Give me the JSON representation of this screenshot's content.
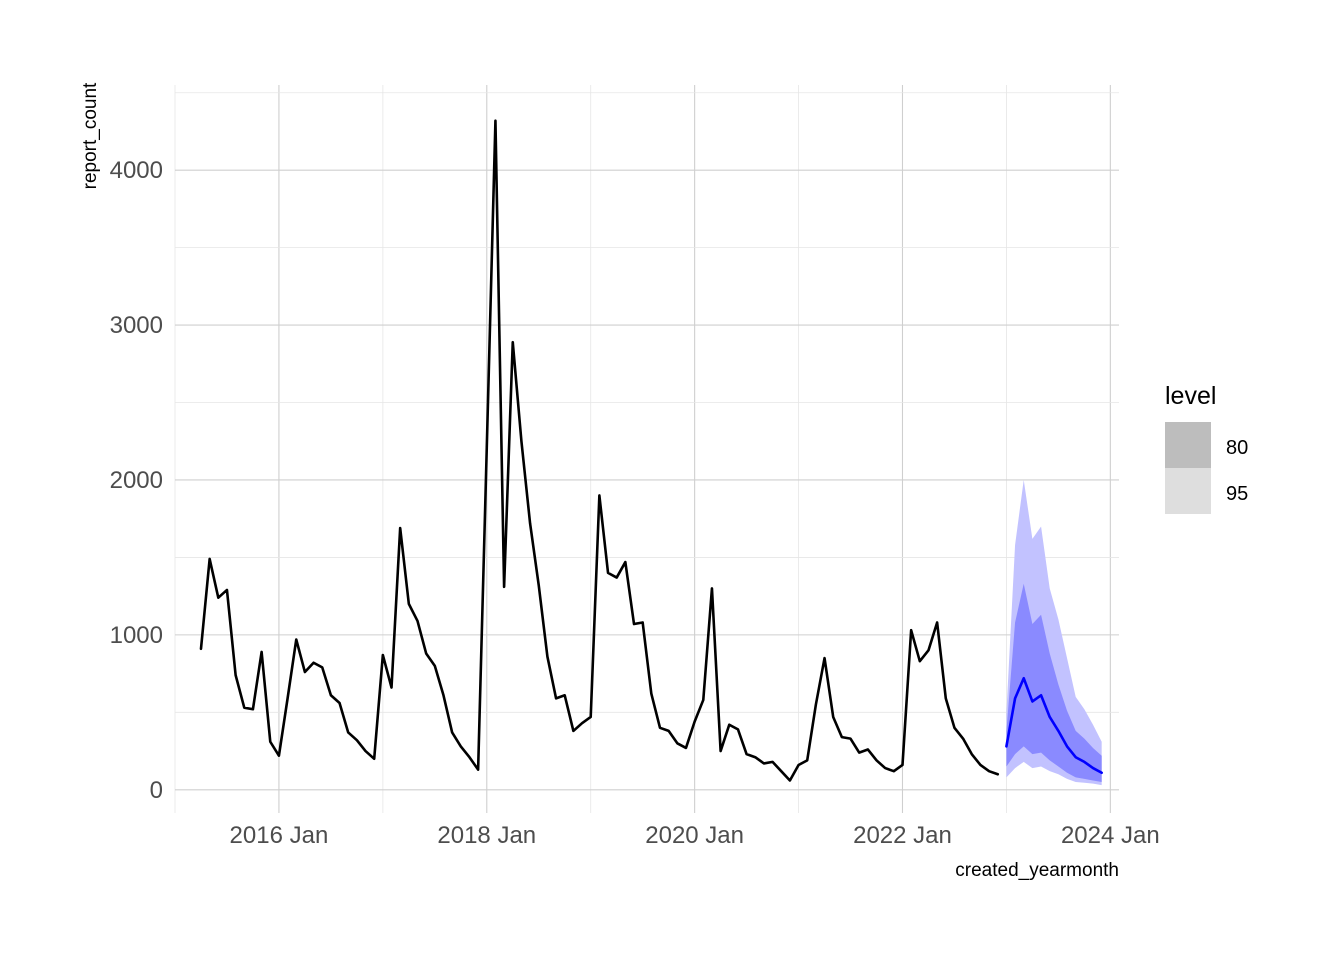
{
  "chart_data": {
    "type": "line",
    "xlabel": "created_yearmonth",
    "ylabel": "report_count",
    "grid": true,
    "legend_position": "right",
    "x_ticks": [
      "2016 Jan",
      "2018 Jan",
      "2020 Jan",
      "2022 Jan",
      "2024 Jan"
    ],
    "y_ticks": [
      0,
      1000,
      2000,
      3000,
      4000
    ],
    "ylim": [
      -150,
      4550
    ],
    "xlim": [
      "2015-01",
      "2024-02"
    ],
    "series": [
      {
        "color": "#000000",
        "x_start": "2015-04",
        "values": [
          910,
          1490,
          1240,
          1290,
          740,
          530,
          520,
          890,
          310,
          220,
          590,
          970,
          760,
          820,
          790,
          610,
          560,
          370,
          320,
          250,
          200,
          870,
          660,
          1690,
          1200,
          1090,
          880,
          800,
          610,
          370,
          280,
          210,
          130,
          2210,
          4320,
          1310,
          2890,
          2250,
          1720,
          1320,
          860,
          590,
          610,
          380,
          430,
          470,
          1900,
          1400,
          1370,
          1470,
          1070,
          1080,
          620,
          400,
          380,
          300,
          270,
          440,
          580,
          1300,
          250,
          420,
          390,
          230,
          210,
          170,
          180,
          120,
          60,
          160,
          190,
          550,
          850,
          470,
          340,
          330,
          240,
          260,
          190,
          140,
          120,
          160,
          1030,
          830,
          900,
          1080,
          590,
          400,
          330,
          230,
          160,
          120,
          100
        ]
      }
    ],
    "forecast": {
      "color": "#0000ff",
      "x_start": "2023-01",
      "mean": [
        280,
        590,
        720,
        570,
        610,
        470,
        380,
        280,
        210,
        180,
        140,
        110
      ],
      "lower_80": [
        150,
        230,
        280,
        230,
        240,
        190,
        150,
        110,
        80,
        70,
        60,
        50
      ],
      "upper_80": [
        380,
        1080,
        1330,
        1070,
        1130,
        880,
        680,
        510,
        380,
        330,
        270,
        220
      ],
      "lower_95": [
        80,
        140,
        180,
        140,
        150,
        120,
        100,
        70,
        50,
        45,
        40,
        30
      ],
      "upper_95": [
        500,
        1580,
        2000,
        1620,
        1700,
        1300,
        1100,
        850,
        600,
        520,
        420,
        310
      ]
    },
    "legend": {
      "title": "level",
      "entries": [
        {
          "label": "80",
          "color": "#bdbdbd"
        },
        {
          "label": "95",
          "color": "#dedede"
        }
      ]
    }
  }
}
